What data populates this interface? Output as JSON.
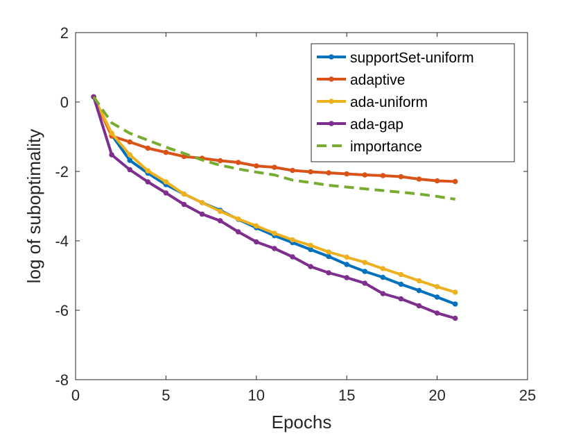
{
  "chart_data": {
    "type": "line",
    "title": "",
    "xlabel": "Epochs",
    "ylabel": "log of suboptimality",
    "xlim": [
      0,
      25
    ],
    "ylim": [
      -8,
      2
    ],
    "xticks": [
      0,
      5,
      10,
      15,
      20,
      25
    ],
    "yticks": [
      -8,
      -6,
      -4,
      -2,
      0,
      2
    ],
    "grid": false,
    "legend_position": "top-right",
    "x": [
      1,
      2,
      3,
      4,
      5,
      6,
      7,
      8,
      9,
      10,
      11,
      12,
      13,
      14,
      15,
      16,
      17,
      18,
      19,
      20,
      21
    ],
    "series": [
      {
        "name": "supportSet-uniform",
        "color": "#0072BD",
        "style": "solid-marker",
        "values": [
          0.15,
          -0.95,
          -1.68,
          -2.05,
          -2.38,
          -2.65,
          -2.9,
          -3.12,
          -3.38,
          -3.62,
          -3.85,
          -4.05,
          -4.25,
          -4.45,
          -4.68,
          -4.88,
          -5.05,
          -5.25,
          -5.43,
          -5.62,
          -5.82
        ]
      },
      {
        "name": "adaptive",
        "color": "#D95319",
        "style": "solid-marker",
        "values": [
          0.15,
          -0.98,
          -1.15,
          -1.33,
          -1.45,
          -1.57,
          -1.62,
          -1.69,
          -1.74,
          -1.84,
          -1.88,
          -1.97,
          -2.01,
          -2.04,
          -2.07,
          -2.1,
          -2.12,
          -2.15,
          -2.22,
          -2.27,
          -2.29
        ]
      },
      {
        "name": "ada-uniform",
        "color": "#EDB120",
        "style": "solid-marker",
        "values": [
          0.15,
          -0.9,
          -1.52,
          -1.98,
          -2.3,
          -2.65,
          -2.9,
          -3.15,
          -3.37,
          -3.57,
          -3.78,
          -3.97,
          -4.13,
          -4.32,
          -4.47,
          -4.62,
          -4.8,
          -4.97,
          -5.15,
          -5.32,
          -5.48
        ]
      },
      {
        "name": "ada-gap",
        "color": "#7E2F8E",
        "style": "solid-marker",
        "values": [
          0.15,
          -1.52,
          -1.95,
          -2.3,
          -2.62,
          -2.95,
          -3.23,
          -3.42,
          -3.74,
          -4.03,
          -4.22,
          -4.46,
          -4.74,
          -4.92,
          -5.06,
          -5.22,
          -5.52,
          -5.67,
          -5.87,
          -6.08,
          -6.23
        ]
      },
      {
        "name": "importance",
        "color": "#77AC30",
        "style": "dashed",
        "values": [
          0.15,
          -0.6,
          -0.9,
          -1.1,
          -1.3,
          -1.48,
          -1.67,
          -1.82,
          -1.93,
          -2.02,
          -2.1,
          -2.25,
          -2.32,
          -2.4,
          -2.45,
          -2.5,
          -2.55,
          -2.6,
          -2.65,
          -2.72,
          -2.8
        ]
      }
    ]
  }
}
